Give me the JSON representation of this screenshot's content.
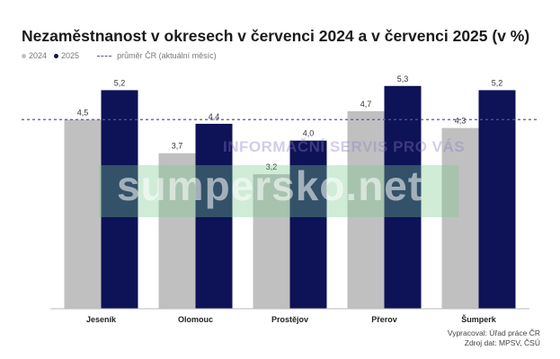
{
  "title": "Nezaměstnanost v okresech v červenci 2024 a v červenci 2025 (v %)",
  "legend": {
    "s2024": "2024",
    "s2025": "2025",
    "avg": "průměr ČR (aktuální měsíc)"
  },
  "watermark": {
    "top": "INFORMAČNÍ SERVIS PRO VÁS",
    "main": "sumpersko.net"
  },
  "credits": {
    "line1": "Vypracoval: Úřad práce ČR",
    "line2": "Zdroj dat: MPSV, ČSÚ"
  },
  "colors": {
    "s2024": "#c0c0c0",
    "s2025": "#0e1257",
    "avg_line": "#555a8a"
  },
  "chart_data": {
    "type": "bar",
    "categories": [
      "Jeseník",
      "Olomouc",
      "Prostějov",
      "Přerov",
      "Šumperk"
    ],
    "series": [
      {
        "name": "2024",
        "values": [
          4.5,
          3.7,
          3.2,
          4.7,
          4.3
        ],
        "labels": [
          "4,5",
          "3,7",
          "3,2",
          "4,7",
          "4,3"
        ]
      },
      {
        "name": "2025",
        "values": [
          5.2,
          4.4,
          4.0,
          5.3,
          5.2
        ],
        "labels": [
          "5,2",
          "4,4",
          "4,0",
          "5,3",
          "5,2"
        ]
      }
    ],
    "reference_line": {
      "name": "průměr ČR (aktuální měsíc)",
      "value": 4.5
    },
    "ylim": [
      0,
      6
    ],
    "grid": false,
    "legend_position": "top-left"
  }
}
